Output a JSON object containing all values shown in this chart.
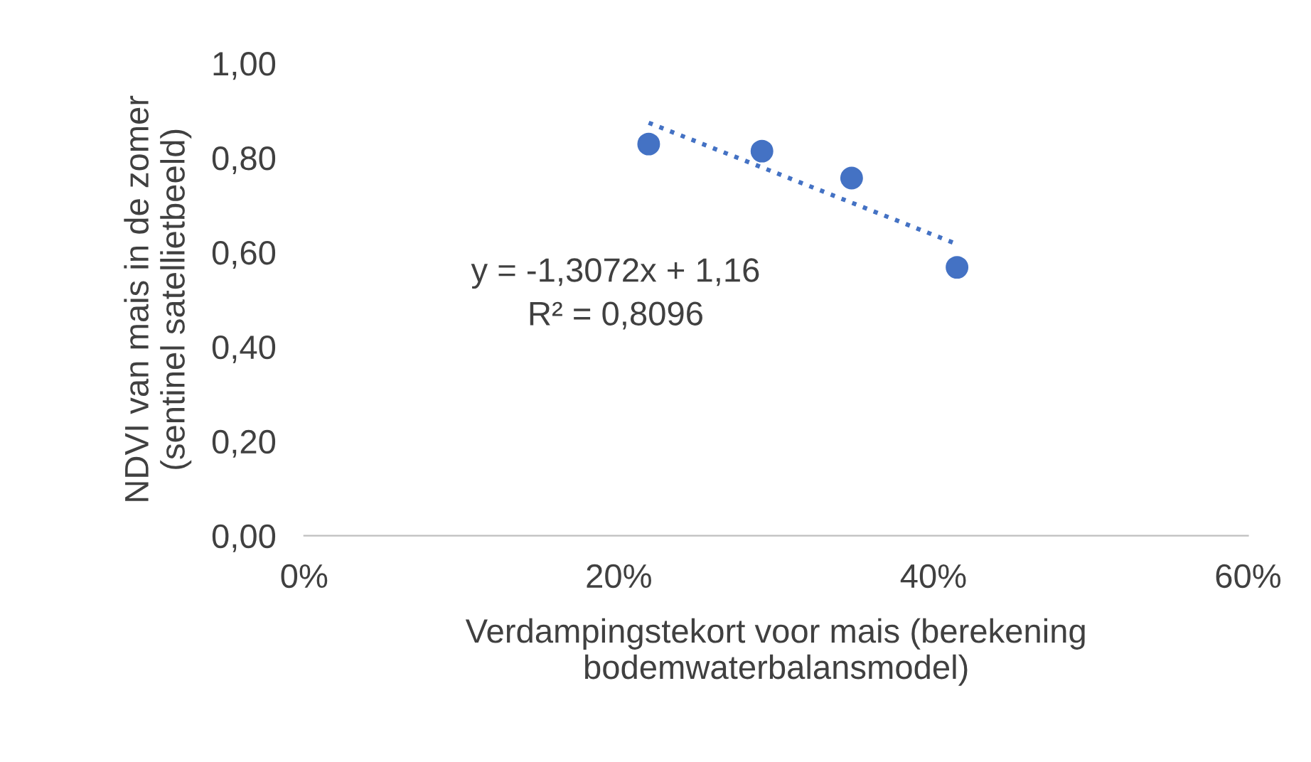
{
  "chart_data": {
    "type": "scatter",
    "xlabel": "Verdampingstekort voor mais (berekening\nbodemwaterbalansmodel)",
    "ylabel": "NDVI van mais in de zomer\n(sentinel satellietbeeld)",
    "series": [
      {
        "color": "#4472c4",
        "x": [
          0.219,
          0.291,
          0.348,
          0.415
        ],
        "values": [
          0.829,
          0.814,
          0.757,
          0.568
        ],
        "marker": "circle"
      },
      {
        "type": "line",
        "color": "#4472c4",
        "x": [
          0.219,
          0.415
        ],
        "values": [
          0.874,
          0.617
        ],
        "line_style": "dotted"
      }
    ],
    "annotations": [
      "y = -1,3072x + 1,16\nR² = 0,8096"
    ],
    "xlim": [
      0,
      0.6
    ],
    "xticks": [
      {
        "value": 0,
        "label": "0%"
      },
      {
        "value": 0.2,
        "label": "20%"
      },
      {
        "value": 0.4,
        "label": "40%"
      },
      {
        "value": 0.6,
        "label": "60%"
      }
    ],
    "ylim": [
      0,
      1
    ],
    "yticks": [
      {
        "value": 0,
        "label": "0,00"
      },
      {
        "value": 0.2,
        "label": "0,20"
      },
      {
        "value": 0.4,
        "label": "0,40"
      },
      {
        "value": 0.6,
        "label": "0,60"
      },
      {
        "value": 0.8,
        "label": "0,80"
      },
      {
        "value": 1,
        "label": "1,00"
      }
    ],
    "grid": false,
    "legend": false
  }
}
